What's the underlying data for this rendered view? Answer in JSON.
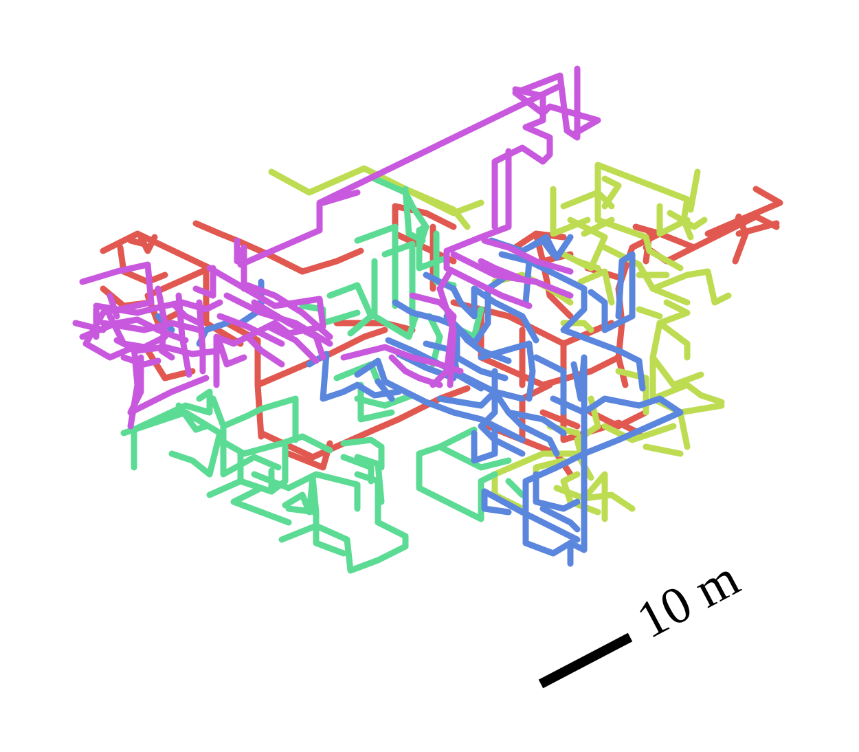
{
  "figure": {
    "description_type": "3d-lattice-walk-paths",
    "paths": [
      {
        "name": "red-path",
        "color": "#e0584f"
      },
      {
        "name": "lime-path",
        "color": "#bddc52"
      },
      {
        "name": "green-path",
        "color": "#5bdb93"
      },
      {
        "name": "blue-path",
        "color": "#5b86dd"
      },
      {
        "name": "magenta-path",
        "color": "#c858dd"
      }
    ],
    "scale_bar": {
      "label": "10 m",
      "color": "#000000"
    }
  }
}
